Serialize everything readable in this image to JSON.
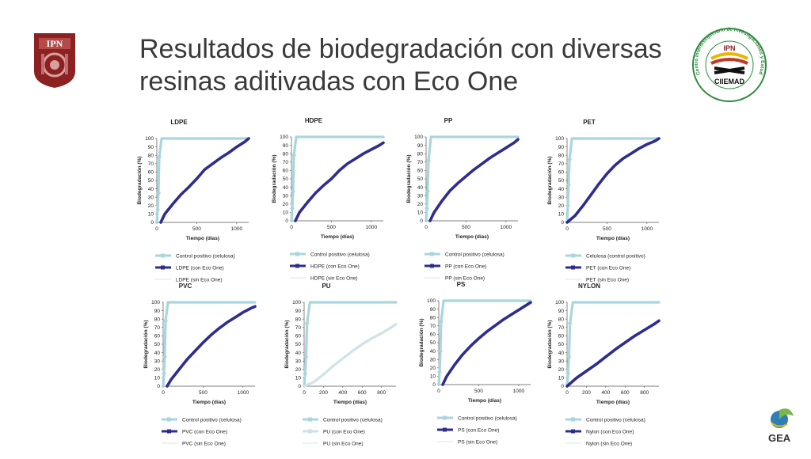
{
  "title": "Resultados de biodegradación con diversas resinas aditivadas con Eco One",
  "logos": {
    "left_text": "IPN",
    "right_text": "IPN",
    "right_name": "CIIEMAD",
    "right_ring": "Centro Interdisciplinario de Investigaciones y Estudios Sobre Medio Ambiente y Desarrollo",
    "bottom_right": "GEA"
  },
  "colors": {
    "control": "#a9d6dd",
    "treated": "#2e2d8f",
    "untreated": "#e8eef0",
    "logo_red": "#8b2121"
  },
  "chart_data": [
    {
      "type": "line",
      "title": "LDPE",
      "xlabel": "Tiempo (días)",
      "ylabel": "Biodegradación (%)",
      "xlim": [
        0,
        1150
      ],
      "ylim": [
        0,
        100
      ],
      "xticks": [
        0,
        500,
        1000
      ],
      "yticks": [
        0,
        10,
        20,
        30,
        40,
        50,
        60,
        70,
        80,
        90,
        100
      ],
      "legend": [
        "Control positivo (celulosa)",
        "LDPE (con Eco One)",
        "LDPE (sin Eco One)"
      ],
      "series": [
        {
          "name": "Control positivo (celulosa)",
          "style": "control",
          "x": [
            0,
            10,
            20,
            30,
            60,
            1150
          ],
          "y": [
            0,
            15,
            35,
            78,
            100,
            100
          ]
        },
        {
          "name": "LDPE (con Eco One)",
          "style": "treated",
          "x": [
            50,
            100,
            200,
            300,
            400,
            500,
            600,
            700,
            800,
            900,
            1000,
            1100,
            1150
          ],
          "y": [
            0,
            10,
            22,
            33,
            42,
            52,
            63,
            70,
            77,
            83,
            90,
            96,
            100
          ]
        },
        {
          "name": "LDPE (sin Eco One)",
          "style": "untreated",
          "x": [],
          "y": []
        }
      ]
    },
    {
      "type": "line",
      "title": "HDPE",
      "xlabel": "Tiempo (días)",
      "ylabel": "Biodegradación (%)",
      "xlim": [
        0,
        1150
      ],
      "ylim": [
        0,
        100
      ],
      "xticks": [
        0,
        500,
        1000
      ],
      "yticks": [
        0,
        10,
        20,
        30,
        40,
        50,
        60,
        70,
        80,
        90,
        100
      ],
      "legend": [
        "Control positivo (celulosa)",
        "HDPE (con Eco One)",
        "HDPE (sin Eco One)"
      ],
      "series": [
        {
          "name": "Control positivo (celulosa)",
          "style": "control",
          "x": [
            0,
            10,
            20,
            30,
            60,
            1150
          ],
          "y": [
            0,
            15,
            35,
            78,
            100,
            100
          ]
        },
        {
          "name": "HDPE (con Eco One)",
          "style": "treated",
          "x": [
            50,
            100,
            200,
            300,
            400,
            500,
            600,
            700,
            800,
            900,
            1000,
            1100,
            1150
          ],
          "y": [
            0,
            10,
            22,
            33,
            42,
            50,
            60,
            68,
            74,
            80,
            85,
            90,
            93
          ]
        },
        {
          "name": "HDPE (sin Eco One)",
          "style": "untreated",
          "x": [],
          "y": []
        }
      ]
    },
    {
      "type": "line",
      "title": "PP",
      "xlabel": "Tiempo (días)",
      "ylabel": "Biodegradación (%)",
      "xlim": [
        0,
        1150
      ],
      "ylim": [
        0,
        100
      ],
      "xticks": [
        0,
        500,
        1000
      ],
      "yticks": [
        0,
        10,
        20,
        30,
        40,
        50,
        60,
        70,
        80,
        90,
        100
      ],
      "legend": [
        "Control positivo (celulosa)",
        "PP (con Eco One)",
        "PP (sin Eco One)"
      ],
      "series": [
        {
          "name": "Control positivo (celulosa)",
          "style": "control",
          "x": [
            0,
            10,
            20,
            30,
            60,
            1150
          ],
          "y": [
            0,
            15,
            35,
            72,
            100,
            100
          ]
        },
        {
          "name": "PP (con Eco One)",
          "style": "treated",
          "x": [
            50,
            100,
            200,
            300,
            400,
            500,
            600,
            700,
            800,
            900,
            1000,
            1100,
            1150
          ],
          "y": [
            0,
            10,
            24,
            36,
            45,
            53,
            61,
            68,
            75,
            81,
            87,
            93,
            97
          ]
        },
        {
          "name": "PP (sin Eco One)",
          "style": "untreated",
          "x": [],
          "y": []
        }
      ]
    },
    {
      "type": "line",
      "title": "PET",
      "xlabel": "Tiempo (días)",
      "ylabel": "Biodegradación (%)",
      "xlim": [
        0,
        1150
      ],
      "ylim": [
        0,
        100
      ],
      "xticks": [
        0,
        500,
        1000
      ],
      "yticks": [
        0,
        10,
        20,
        30,
        40,
        50,
        60,
        70,
        80,
        90,
        100
      ],
      "legend": [
        "Celulosa (control positivo)",
        "PET (con Eco One)",
        "PET (sin Eco One)"
      ],
      "series": [
        {
          "name": "Celulosa (control positivo)",
          "style": "control",
          "x": [
            0,
            10,
            20,
            30,
            60,
            1150
          ],
          "y": [
            0,
            20,
            45,
            75,
            100,
            100
          ]
        },
        {
          "name": "PET (con Eco One)",
          "style": "treated",
          "x": [
            0,
            100,
            200,
            300,
            400,
            500,
            600,
            700,
            800,
            900,
            1000,
            1100,
            1150
          ],
          "y": [
            0,
            8,
            20,
            33,
            46,
            58,
            68,
            76,
            82,
            88,
            93,
            97,
            100
          ]
        },
        {
          "name": "PET (sin Eco One)",
          "style": "untreated",
          "x": [],
          "y": []
        }
      ]
    },
    {
      "type": "line",
      "title": "PVC",
      "xlabel": "Tiempo (días)",
      "ylabel": "Biodegradación (%)",
      "xlim": [
        0,
        1150
      ],
      "ylim": [
        0,
        100
      ],
      "xticks": [
        0,
        500,
        1000
      ],
      "yticks": [
        0,
        10,
        20,
        30,
        40,
        50,
        60,
        70,
        80,
        90,
        100
      ],
      "legend": [
        "Control positivo (celulosa)",
        "PVC (con Eco One)",
        "PVC (sin Eco One)"
      ],
      "series": [
        {
          "name": "Control positivo (celulosa)",
          "style": "control",
          "x": [
            0,
            10,
            20,
            30,
            60,
            1150
          ],
          "y": [
            0,
            15,
            35,
            78,
            100,
            100
          ]
        },
        {
          "name": "PVC (con Eco One)",
          "style": "treated",
          "x": [
            50,
            100,
            200,
            300,
            400,
            500,
            600,
            700,
            800,
            900,
            1000,
            1100,
            1150
          ],
          "y": [
            0,
            8,
            20,
            32,
            42,
            52,
            61,
            69,
            76,
            82,
            88,
            93,
            95
          ]
        },
        {
          "name": "PVC (sin Eco One)",
          "style": "untreated",
          "x": [],
          "y": []
        }
      ]
    },
    {
      "type": "line",
      "title": "PU",
      "xlabel": "Tiempo (días)",
      "ylabel": "Biodegradación (%)",
      "xlim": [
        0,
        950
      ],
      "ylim": [
        0,
        100
      ],
      "xticks": [
        0,
        200,
        400,
        600,
        800
      ],
      "yticks": [
        0,
        10,
        20,
        30,
        40,
        50,
        60,
        70,
        80,
        90,
        100
      ],
      "legend": [
        "Control positivo (celulosa)",
        "PU (con Eco One)",
        "PU (sin Eco One)"
      ],
      "series": [
        {
          "name": "Control positivo (celulosa)",
          "style": "control",
          "x": [
            0,
            10,
            20,
            30,
            60,
            950
          ],
          "y": [
            0,
            15,
            35,
            75,
            100,
            100
          ]
        },
        {
          "name": "PU (con Eco One)",
          "style": "light",
          "x": [
            0,
            100,
            200,
            300,
            400,
            500,
            600,
            700,
            800,
            900,
            950
          ],
          "y": [
            0,
            5,
            14,
            24,
            33,
            42,
            50,
            57,
            63,
            70,
            74
          ]
        },
        {
          "name": "PU (sin Eco One)",
          "style": "untreated",
          "x": [],
          "y": []
        }
      ]
    },
    {
      "type": "line",
      "title": "PS",
      "xlabel": "Tiempo (días)",
      "ylabel": "Biodegradación (%)",
      "xlim": [
        0,
        1150
      ],
      "ylim": [
        0,
        100
      ],
      "xticks": [
        0,
        500,
        1000
      ],
      "yticks": [
        0,
        10,
        20,
        30,
        40,
        50,
        60,
        70,
        80,
        90,
        100
      ],
      "legend": [
        "Control positivo (celulosa)",
        "PS (con Eco One)",
        "PS (sin Eco One)"
      ],
      "series": [
        {
          "name": "Control positivo (celulosa)",
          "style": "control",
          "x": [
            0,
            10,
            20,
            30,
            60,
            1150
          ],
          "y": [
            0,
            15,
            40,
            75,
            100,
            100
          ]
        },
        {
          "name": "PS (con Eco One)",
          "style": "treated",
          "x": [
            50,
            100,
            200,
            300,
            400,
            500,
            600,
            700,
            800,
            900,
            1000,
            1100,
            1150
          ],
          "y": [
            0,
            10,
            24,
            36,
            46,
            55,
            63,
            70,
            77,
            83,
            89,
            95,
            98
          ]
        },
        {
          "name": "PS (sin Eco One)",
          "style": "untreated",
          "x": [],
          "y": []
        }
      ]
    },
    {
      "type": "line",
      "title": "NYLON",
      "xlabel": "Tiempo (días)",
      "ylabel": "Biodegradación (%)",
      "xlim": [
        0,
        950
      ],
      "ylim": [
        0,
        100
      ],
      "xticks": [
        0,
        200,
        400,
        600,
        800
      ],
      "yticks": [
        0,
        10,
        20,
        30,
        40,
        50,
        60,
        70,
        80,
        90,
        100
      ],
      "legend": [
        "Control positivo (celulosa)",
        "Nylon (con Eco One)",
        "Nylon (sin Eco One)"
      ],
      "series": [
        {
          "name": "Control positivo (celulosa)",
          "style": "control",
          "x": [
            0,
            10,
            20,
            30,
            60,
            950
          ],
          "y": [
            0,
            15,
            35,
            75,
            100,
            100
          ]
        },
        {
          "name": "Nylon (con Eco One)",
          "style": "treated",
          "x": [
            0,
            100,
            200,
            300,
            400,
            500,
            600,
            700,
            800,
            900,
            950
          ],
          "y": [
            0,
            10,
            18,
            26,
            35,
            44,
            52,
            60,
            67,
            74,
            78
          ]
        },
        {
          "name": "Nylon (sin Eco One)",
          "style": "untreated",
          "x": [],
          "y": []
        }
      ]
    }
  ]
}
